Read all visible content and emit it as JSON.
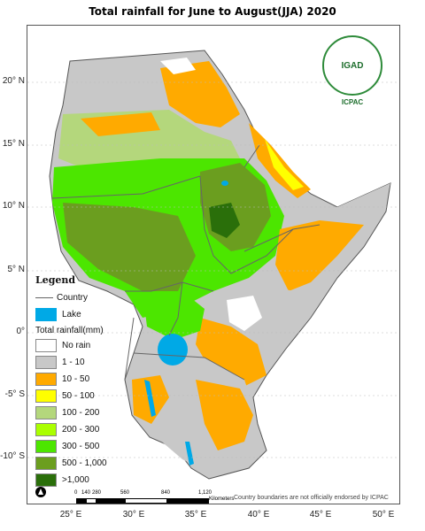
{
  "title": "Total rainfall for June to August(JJA) 2020",
  "y_axis_labels": [
    "20° N",
    "15° N",
    "10° N",
    "5° N",
    "0°",
    "-5° S",
    "-10° S"
  ],
  "x_axis_labels": [
    "25° E",
    "30° E",
    "35° E",
    "40° E",
    "45° E",
    "50° E"
  ],
  "logo": {
    "name": "IGAD",
    "caption": "ICPAC"
  },
  "legend": {
    "title": "Legend",
    "country_label": "Country",
    "lake_label": "Lake",
    "rainfall_title": "Total rainfall(mm)",
    "items": [
      {
        "label": "No rain",
        "color": "#ffffff"
      },
      {
        "label": "1 - 10",
        "color": "#c8c8c8"
      },
      {
        "label": "10 - 50",
        "color": "#ffaa00"
      },
      {
        "label": "50 - 100",
        "color": "#ffff00"
      },
      {
        "label": "100 - 200",
        "color": "#b4d77c"
      },
      {
        "label": "200 - 300",
        "color": "#aaff00"
      },
      {
        "label": "300 - 500",
        "color": "#4ce600"
      },
      {
        "label": "500 - 1,000",
        "color": "#6b9e1f"
      },
      {
        "label": ">1,000",
        "color": "#2a6f0a"
      }
    ],
    "lake_color": "#00a9e6",
    "country_color": "#666666"
  },
  "scalebar": {
    "ticks": [
      "0",
      "140",
      "280",
      "560",
      "840",
      "1,120"
    ],
    "unit": "Kilometers"
  },
  "disclaimer": "Country boundaries are not officially endorsed by ICPAC"
}
